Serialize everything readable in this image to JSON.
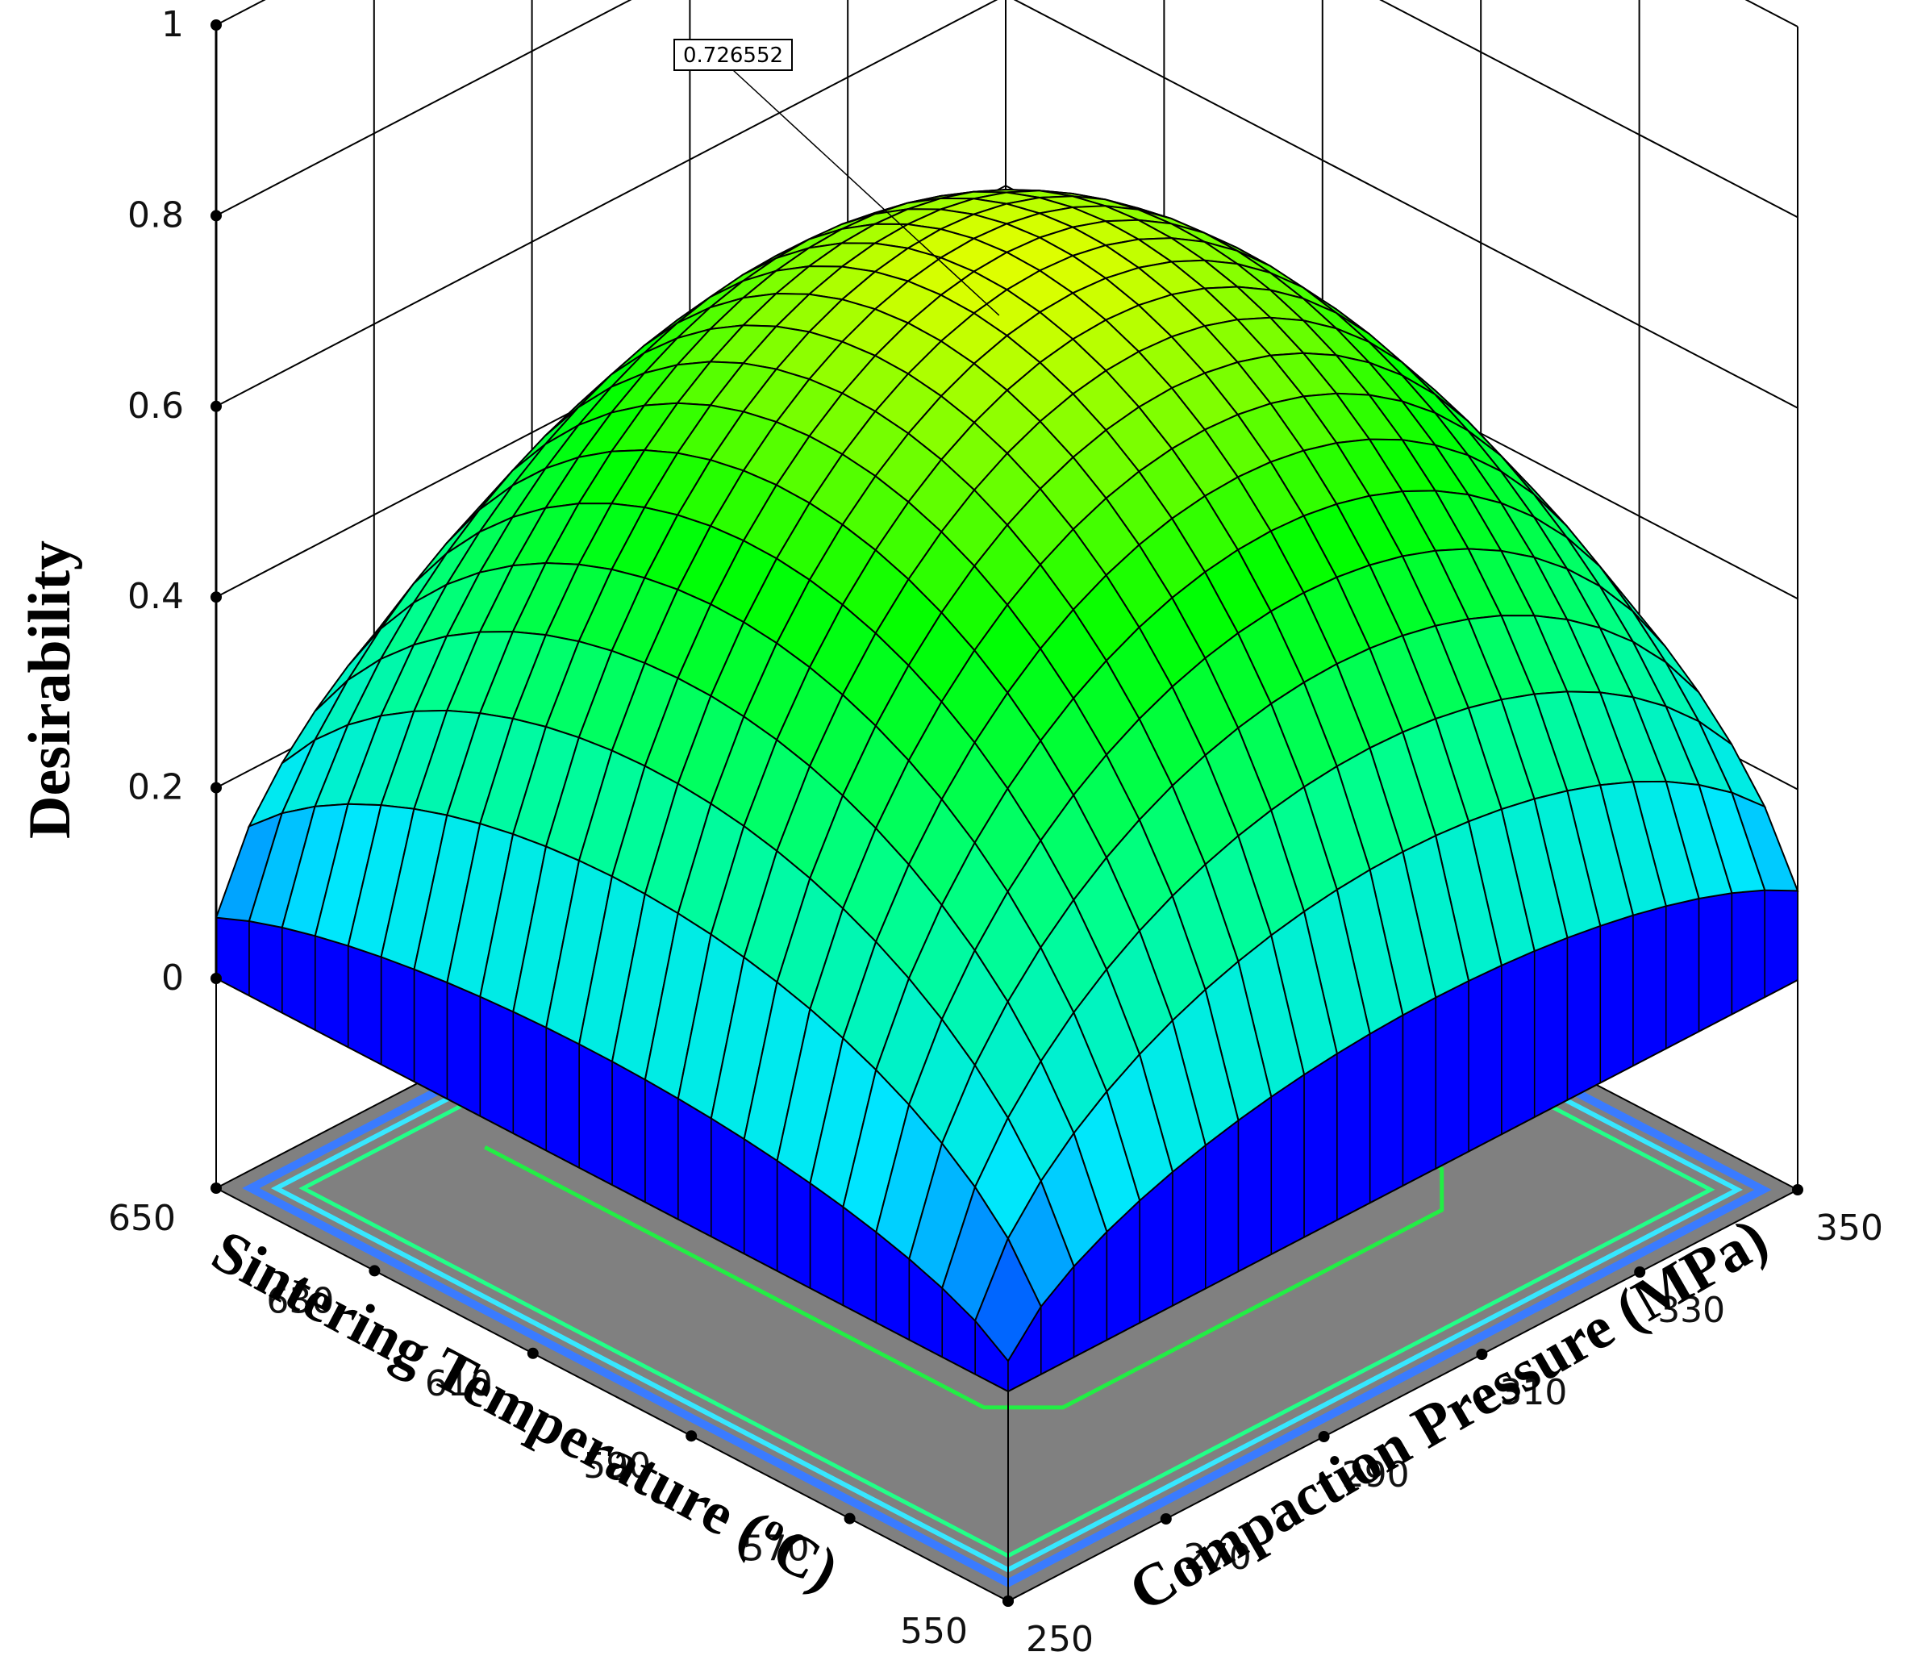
{
  "chart_data": {
    "type": "surface3d",
    "z_axis": {
      "label": "Desirability",
      "ticks": [
        "0",
        "0.2",
        "0.4",
        "0.6",
        "0.8",
        "1"
      ],
      "range": [
        0,
        1
      ]
    },
    "x_axis": {
      "label": "Sintering Temperature (°C)",
      "label_main": "Sintering Temperature (",
      "label_sup": "o",
      "label_end": "C)",
      "ticks": [
        "650",
        "630",
        "610",
        "590",
        "570",
        "550"
      ],
      "range": [
        550,
        650
      ]
    },
    "y_axis": {
      "label": "Compaction Pressure (MPa)",
      "ticks": [
        "250",
        "270",
        "290",
        "310",
        "330",
        "350"
      ],
      "range": [
        250,
        350
      ]
    },
    "callout": {
      "value": "0.726552"
    },
    "peak_desirability": 0.726552,
    "edge_desirability_min": 0.0,
    "grid": true,
    "colors": {
      "low": "#0000ff",
      "mid": "#00e5ff",
      "high": "#00ff00",
      "peak": "#ffff00",
      "floor": "#808080",
      "contour": "#22ee44"
    }
  }
}
